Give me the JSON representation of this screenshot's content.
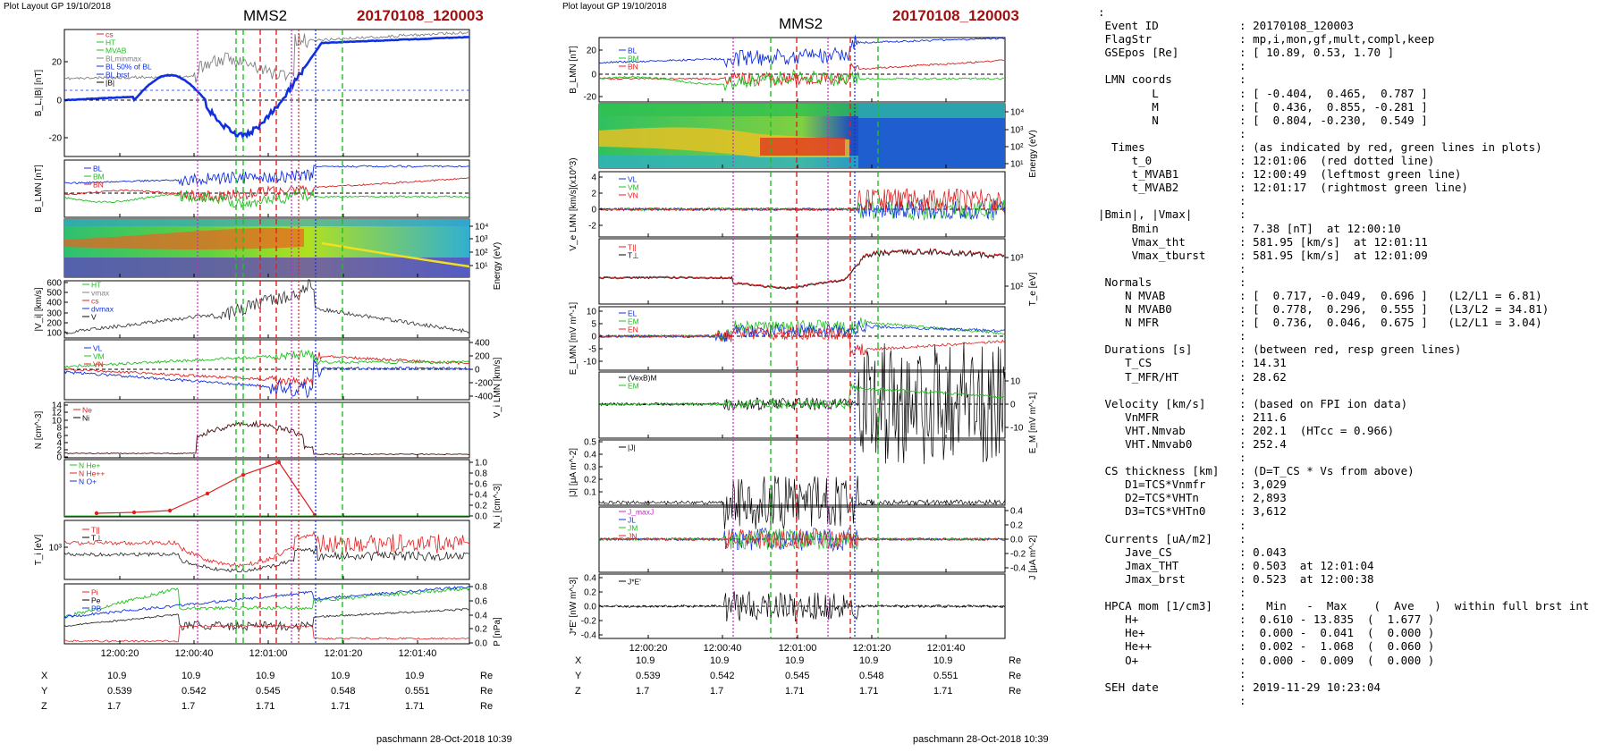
{
  "left_panel": {
    "header_note": "Plot Layout GP 19/10/2018",
    "title": "MMS2",
    "event": "20170108_120003",
    "footer": "paschmann 28-Oct-2018 10:39",
    "time_ticks": [
      "12:00:20",
      "12:00:40",
      "12:01:00",
      "12:01:20",
      "12:01:40"
    ],
    "orbit_rows": [
      {
        "label": "X",
        "values": [
          "10.9",
          "10.9",
          "10.9",
          "10.9",
          "10.9"
        ],
        "unit": "Re"
      },
      {
        "label": "Y",
        "values": [
          "0.539",
          "0.542",
          "0.545",
          "0.548",
          "0.551"
        ],
        "unit": "Re"
      },
      {
        "label": "Z",
        "values": [
          "1.7",
          "1.7",
          "1.71",
          "1.71",
          "1.71"
        ],
        "unit": "Re"
      }
    ]
  },
  "middle_panel": {
    "header_note": "Plot layout GP 19/10/2018",
    "title": "MMS2",
    "event": "20170108_120003",
    "footer": "paschmann 28-Oct-2018 10:39",
    "time_ticks": [
      "12:00:20",
      "12:00:40",
      "12:01:00",
      "12:01:20",
      "12:01:40"
    ],
    "orbit_rows": [
      {
        "label": "X",
        "values": [
          "10.9",
          "10.9",
          "10.9",
          "10.9",
          "10.9"
        ],
        "unit": "Re"
      },
      {
        "label": "Y",
        "values": [
          "0.539",
          "0.542",
          "0.545",
          "0.548",
          "0.551"
        ],
        "unit": "Re"
      },
      {
        "label": "Z",
        "values": [
          "1.7",
          "1.7",
          "1.71",
          "1.71",
          "1.71"
        ],
        "unit": "Re"
      }
    ]
  },
  "info_text": [
    ":",
    " Event ID            : 20170108_120003",
    " FlagStr             : mp,i,mon,gf,mult,compl,keep",
    " GSEpos [Re]         : [ 10.89, 0.53, 1.70 ]",
    "                     :",
    " LMN coords          :",
    "        L            : [ -0.404,  0.465,  0.787 ]",
    "        M            : [  0.436,  0.855, -0.281 ]",
    "        N            : [  0.804, -0.230,  0.549 ]",
    "                     :",
    "  Times              : (as indicated by red, green lines in plots)",
    "     t_0             : 12:01:06  (red dotted line)",
    "     t_MVAB1         : 12:00:49  (leftmost green line)",
    "     t_MVAB2         : 12:01:17  (rightmost green line)",
    "                     :",
    "|Bmin|, |Vmax|       :",
    "     Bmin            : 7.38 [nT]  at 12:00:10",
    "     Vmax_tht        : 581.95 [km/s]  at 12:01:11",
    "     Vmax_tburst     : 581.95 [km/s]  at 12:01:09",
    "                     :",
    " Normals             :",
    "    N MVAB           : [  0.717, -0.049,  0.696 ]   (L2/L1 = 6.81)",
    "    N MVAB0          : [  0.778,  0.296,  0.555 ]   (L3/L2 = 34.81)",
    "    N MFR            : [  0.736,  0.046,  0.675 ]   (L2/L1 = 3.04)",
    "                     :",
    " Durations [s]       : (between red, resp green lines)",
    "    T_CS             : 14.31",
    "    T_MFR/HT         : 28.62",
    "                     :",
    " Velocity [km/s]     : (based on FPI ion data)",
    "    VnMFR            : 211.6",
    "    VHT.Nmvab        : 202.1  (HTcc = 0.966)",
    "    VHT.Nmvab0       : 252.4",
    "                     :",
    " CS thickness [km]   : (D=T_CS * Vs from above)",
    "    D1=TCS*Vnmfr     : 3,029",
    "    D2=TCS*VHTn      : 2,893",
    "    D3=TCS*VHTn0     : 3,612",
    "                     :",
    " Currents [uA/m2]    :",
    "    Jave_CS          : 0.043",
    "    Jmax_THT         : 0.503  at 12:01:04",
    "    Jmax_brst        : 0.523  at 12:00:38",
    "                     :",
    " HPCA mom [1/cm3]    :   Min   -  Max    (  Ave   )  within full brst int",
    "    H+               :  0.610 - 13.835  (  1.677 )",
    "    He+              :  0.000 -  0.041  (  0.000 )",
    "    He++             :  0.002 -  1.068  (  0.060 )",
    "    O+               :  0.000 -  0.009  (  0.000 )",
    "                     :",
    " SEH date            : 2019-11-29 10:23:04",
    "                     :"
  ],
  "colors": {
    "event": "#a01010",
    "blue": "#1030e0",
    "red": "#e02020",
    "green": "#20c020",
    "black": "#000000",
    "magenta": "#d020d0",
    "gray": "#808080"
  },
  "chart_data": [
    {
      "type": "line",
      "panel": "left",
      "subplots": [
        {
          "ylabel": "B_L,|B| [nT]",
          "yticks": [
            "20",
            "0",
            "-20"
          ],
          "legend": [
            "cs",
            "HT",
            "MVAB",
            "BLminmax",
            "BL 50% of BL",
            "BL brst",
            "|B|"
          ],
          "series": [
            {
              "name": "BL",
              "color": "#1030e0"
            },
            {
              "name": "|B|",
              "color": "#808080"
            }
          ]
        },
        {
          "ylabel": "B_LMN [nT]",
          "legend": [
            "BL",
            "BM",
            "BN"
          ],
          "series": [
            {
              "name": "BL",
              "color": "#1030e0"
            },
            {
              "name": "BM",
              "color": "#20c020"
            },
            {
              "name": "BN",
              "color": "#e02020"
            }
          ]
        },
        {
          "ylabel": "Energy (eV)",
          "yticks": [
            "10^4",
            "10^3",
            "10^2",
            "10^1"
          ],
          "kind": "spectrogram"
        },
        {
          "ylabel": "|V_i| [km/s]",
          "yticks": [
            "600",
            "500",
            "400",
            "300",
            "200",
            "100"
          ],
          "legend": [
            "HT",
            "vmax",
            "cs",
            "dvmax",
            "V"
          ]
        },
        {
          "ylabel": "V_i LMN [km/s]",
          "yticks": [
            "400",
            "200",
            "0",
            "-200",
            "-400"
          ],
          "legend": [
            "VL",
            "VM",
            "VN"
          ]
        },
        {
          "ylabel": "N [cm^-3]",
          "yticks": [
            "14",
            "12",
            "10",
            "8",
            "6",
            "4",
            "2",
            "0"
          ],
          "legend": [
            "Ne",
            "Ni"
          ]
        },
        {
          "ylabel": "N_i [cm^-3]",
          "yticks": [
            "1.0",
            "0.8",
            "0.6",
            "0.4",
            "0.2",
            "0.0"
          ],
          "legend": [
            "N  He+",
            "N  He++",
            "N  O+"
          ]
        },
        {
          "ylabel": "T_i [eV]",
          "yticks": [
            "10^3"
          ],
          "legend": [
            "T||",
            "T⊥"
          ]
        },
        {
          "ylabel": "P [nPa]",
          "yticks": [
            "0.8",
            "0.6",
            "0.4",
            "0.2",
            "0.0"
          ],
          "legend": [
            "P_i",
            "P_e",
            "P_B"
          ]
        }
      ]
    },
    {
      "type": "line",
      "panel": "middle",
      "subplots": [
        {
          "ylabel": "B_LMN [nT]",
          "yticks": [
            "20",
            "0",
            "-20"
          ],
          "legend": [
            "BL",
            "BM",
            "BN"
          ]
        },
        {
          "ylabel": "Energy (eV)",
          "yticks": [
            "10^4",
            "10^3",
            "10^2",
            "10^1"
          ],
          "kind": "spectrogram"
        },
        {
          "ylabel": "V_e LMN [km/s](x10^3)",
          "yticks": [
            "4",
            "2",
            "0",
            "-2"
          ],
          "legend": [
            "VL",
            "VM",
            "VN"
          ]
        },
        {
          "ylabel": "T_e [eV]",
          "yticks": [
            "10^3",
            "10^2"
          ],
          "legend": [
            "T||",
            "T⊥"
          ]
        },
        {
          "ylabel": "E_LMN [mV m^-1]",
          "yticks": [
            "10",
            "5",
            "0",
            "-5",
            "-10"
          ],
          "legend": [
            "EL",
            "EM",
            "EN"
          ]
        },
        {
          "ylabel": "E_M [mV m^-1]",
          "yticks": [
            "10",
            "0",
            "-10"
          ],
          "legend": [
            "(VexB)M",
            "EM"
          ]
        },
        {
          "ylabel": "|J| [μA m^-2]",
          "yticks": [
            "0.5",
            "0.4",
            "0.3",
            "0.2",
            "0.1"
          ],
          "legend": [
            "|J|"
          ]
        },
        {
          "ylabel": "J [μA m^-2]",
          "yticks": [
            "0.4",
            "0.2",
            "0.0",
            "-0.2",
            "-0.4"
          ],
          "legend": [
            "J_maxJ",
            "JL",
            "JM",
            "JN"
          ]
        },
        {
          "ylabel": "J*E' [nW m^-3]",
          "yticks": [
            "0.4",
            "0.2",
            "0.0",
            "-0.2",
            "-0.4"
          ],
          "legend": [
            "J*E'"
          ]
        }
      ]
    }
  ]
}
